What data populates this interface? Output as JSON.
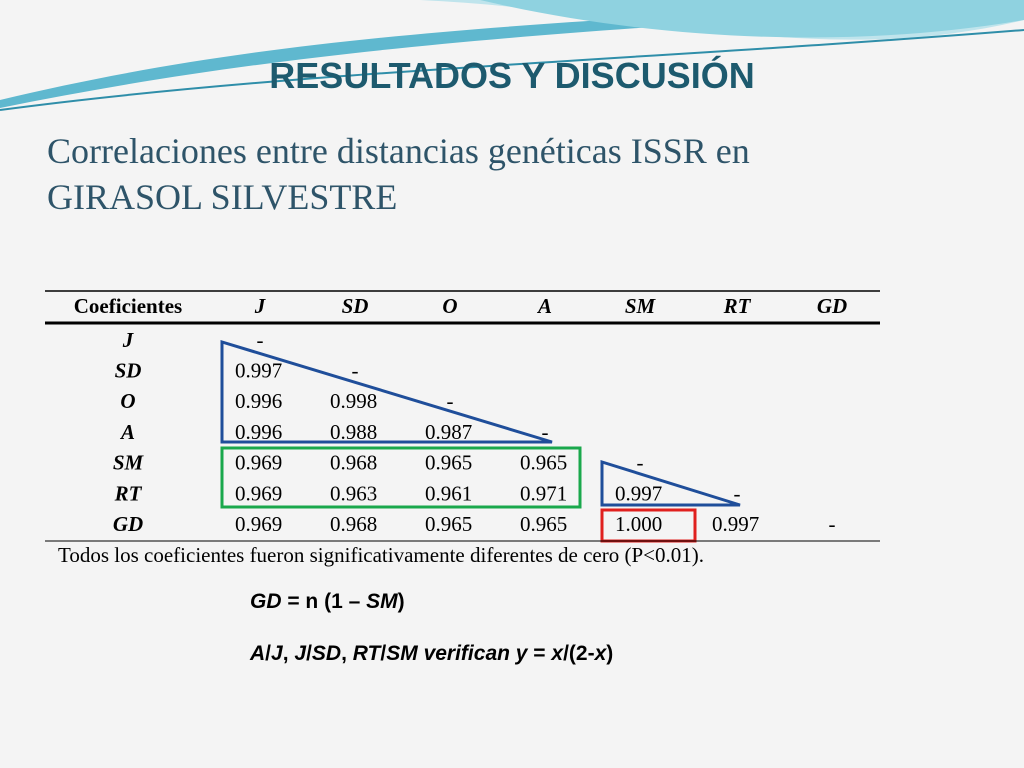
{
  "header": {
    "title": "RESULTADOS Y DISCUSIÓN",
    "subtitle": "Correlaciones entre distancias genéticas ISSR en GIRASOL SILVESTRE"
  },
  "table": {
    "columns": [
      "Coeficientes",
      "J",
      "SD",
      "O",
      "A",
      "SM",
      "RT",
      "GD"
    ],
    "rows": [
      [
        "J",
        "-"
      ],
      [
        "SD",
        "0.997",
        "-"
      ],
      [
        "O",
        "0.996",
        "0.998",
        "-"
      ],
      [
        "A",
        "0.996",
        "0.988",
        "0.987",
        "-"
      ],
      [
        "SM",
        "0.969",
        "0.968",
        "0.965",
        "0.965",
        "-"
      ],
      [
        "RT",
        "0.969",
        "0.963",
        "0.961",
        "0.971",
        "0.997",
        "-"
      ],
      [
        "GD",
        "0.969",
        "0.968",
        "0.965",
        "0.965",
        "1.000",
        "0.997",
        "-"
      ]
    ],
    "note": "Todos los coeficientes fueron significativamente diferentes de cero (P<0.01)."
  },
  "formulas": [
    [
      {
        "text": "GD",
        "italic": true
      },
      {
        "text": " = n (1 – ",
        "italic": false
      },
      {
        "text": "SM",
        "italic": true
      },
      {
        "text": ")",
        "italic": false
      }
    ],
    [
      {
        "text": "A",
        "italic": true
      },
      {
        "text": "/",
        "italic": false
      },
      {
        "text": "J",
        "italic": true
      },
      {
        "text": ", ",
        "italic": false
      },
      {
        "text": "J",
        "italic": true
      },
      {
        "text": "/",
        "italic": false
      },
      {
        "text": "SD",
        "italic": true
      },
      {
        "text": ", ",
        "italic": false
      },
      {
        "text": "RT",
        "italic": true
      },
      {
        "text": "/",
        "italic": false
      },
      {
        "text": "SM verifican y",
        "italic": true
      },
      {
        "text": " = ",
        "italic": false
      },
      {
        "text": "x",
        "italic": true
      },
      {
        "text": "/(2-",
        "italic": false
      },
      {
        "text": "x",
        "italic": true
      },
      {
        "text": ")",
        "italic": false
      }
    ]
  ]
}
